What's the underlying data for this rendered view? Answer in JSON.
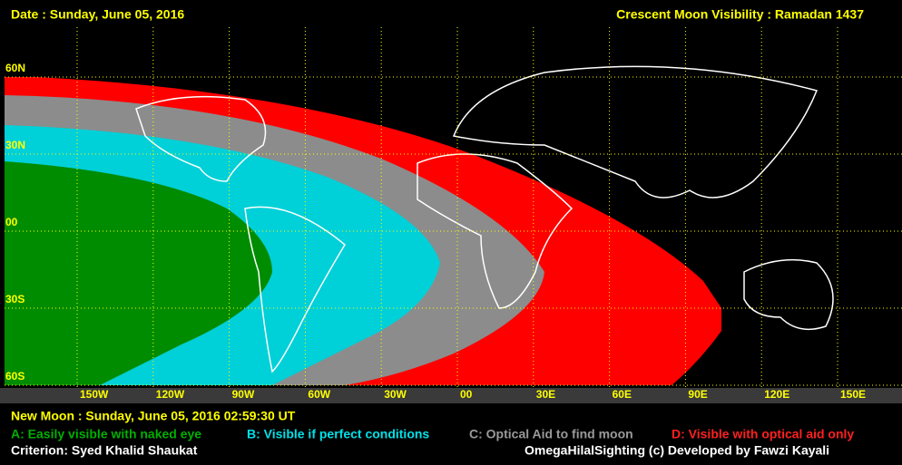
{
  "header": {
    "date": "Date : Sunday, June 05, 2016",
    "title": "Crescent Moon Visibility : Ramadan  1437"
  },
  "map": {
    "lat_labels": [
      "60N",
      "30N",
      "00",
      "30S",
      "60S"
    ],
    "lon_labels": [
      "150W",
      "120W",
      "90W",
      "60W",
      "30W",
      "00",
      "30E",
      "60E",
      "90E",
      "120E",
      "150E"
    ]
  },
  "footer": {
    "new_moon": "New Moon : Sunday, June 05, 2016  02:59:30  UT",
    "legend": [
      "A: Easily visible with naked eye",
      "B: Visible if perfect conditions",
      "C: Optical Aid to find moon",
      "D: Visible with optical aid only"
    ],
    "criterion": "Criterion: Syed Khalid Shaukat",
    "credit": "OmegaHilalSighting  (c)  Developed by Fawzi Kayali"
  }
}
